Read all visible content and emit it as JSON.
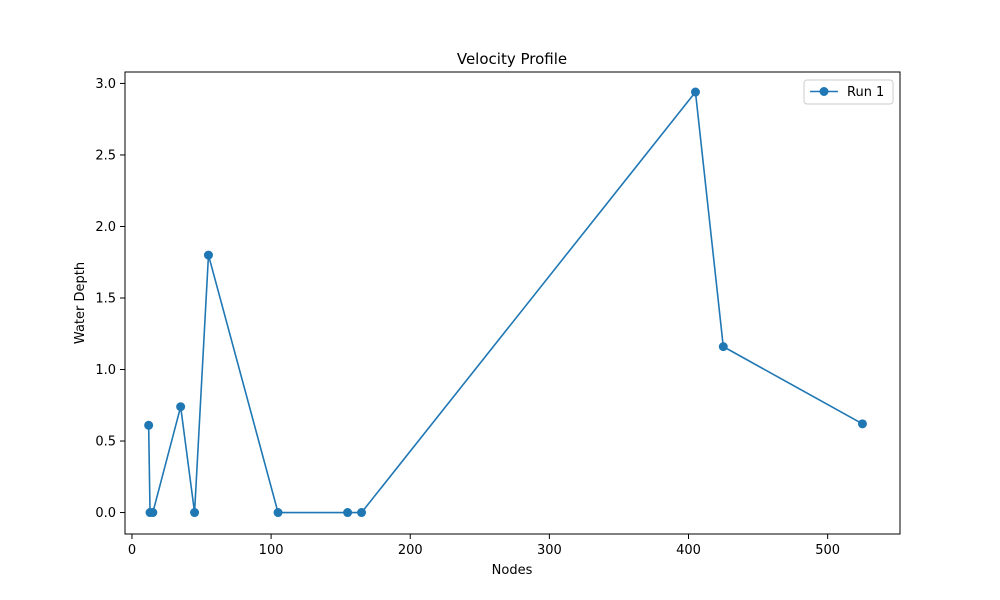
{
  "chart_data": {
    "type": "line",
    "title": "Velocity Profile",
    "xlabel": "Nodes",
    "ylabel": "Water Depth",
    "xlim": [
      -5,
      552
    ],
    "ylim": [
      -0.15,
      3.08
    ],
    "xticks": [
      0,
      100,
      200,
      300,
      400,
      500
    ],
    "yticks": [
      0.0,
      0.5,
      1.0,
      1.5,
      2.0,
      2.5,
      3.0
    ],
    "xtick_labels": [
      "0",
      "100",
      "200",
      "300",
      "400",
      "500"
    ],
    "ytick_labels": [
      "0.0",
      "0.5",
      "1.0",
      "1.5",
      "2.0",
      "2.5",
      "3.0"
    ],
    "grid": false,
    "legend_position": "top-right",
    "series": [
      {
        "name": "Run 1",
        "color": "#1f77b4",
        "marker": "circle",
        "x": [
          12,
          13,
          15,
          35,
          45,
          55,
          105,
          155,
          165,
          405,
          425,
          525
        ],
        "y": [
          0.61,
          0.0,
          0.0,
          0.74,
          0.0,
          1.8,
          0.0,
          0.0,
          0.0,
          2.94,
          1.16,
          0.62
        ]
      }
    ]
  }
}
